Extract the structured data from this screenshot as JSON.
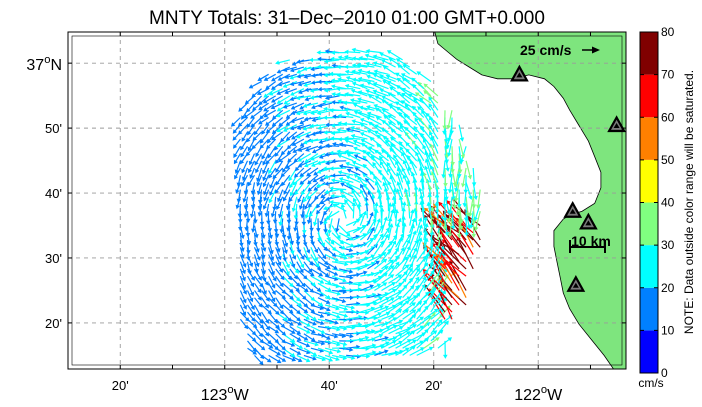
{
  "title": "MNTY Totals: 31–Dec–2010 01:00 GMT+0.000",
  "lat_labels": [
    {
      "text": "37",
      "sup": "o",
      "suffix": "N",
      "lat": 37.0
    },
    {
      "text": "50'",
      "lat": 36.8333
    },
    {
      "text": "40'",
      "lat": 36.6667
    },
    {
      "text": "30'",
      "lat": 36.5
    },
    {
      "text": "20'",
      "lat": 36.3333
    }
  ],
  "lon_labels": [
    {
      "text": "20'",
      "lon": -123.3333
    },
    {
      "text": "123",
      "sup": "o",
      "suffix": "W",
      "lon": -123.0
    },
    {
      "text": "40'",
      "lon": -122.6667
    },
    {
      "text": "20'",
      "lon": -122.3333
    },
    {
      "text": "122",
      "sup": "o",
      "suffix": "W",
      "lon": -122.0
    }
  ],
  "map_extent": {
    "lon_min": -123.5,
    "lon_max": -121.72,
    "lat_min": 36.215,
    "lat_max": 37.08
  },
  "scale_arrow_label": "25 cm/s",
  "scale_bar_label": "10 km",
  "colorbar": {
    "ticks": [
      "0",
      "10",
      "20",
      "30",
      "40",
      "50",
      "60",
      "70",
      "80"
    ],
    "unit": "cm/s",
    "note": "NOTE: Data outside color range will be saturated.",
    "colors": [
      "#0000ff",
      "#0080ff",
      "#00ffff",
      "#80ff80",
      "#ffff00",
      "#ff8000",
      "#ff0000",
      "#800000"
    ],
    "min": 0,
    "max": 80
  },
  "land_color": "#7ee57e",
  "coastline": [
    [
      -122.33,
      37.08
    ],
    [
      -122.32,
      37.05
    ],
    [
      -122.29,
      37.03
    ],
    [
      -122.26,
      37.01
    ],
    [
      -122.22,
      36.99
    ],
    [
      -122.18,
      36.97
    ],
    [
      -122.13,
      36.96
    ],
    [
      -122.08,
      36.96
    ],
    [
      -122.03,
      36.97
    ],
    [
      -121.98,
      36.96
    ],
    [
      -121.95,
      36.94
    ],
    [
      -121.92,
      36.91
    ],
    [
      -121.9,
      36.88
    ],
    [
      -121.87,
      36.84
    ],
    [
      -121.84,
      36.8
    ],
    [
      -121.82,
      36.76
    ],
    [
      -121.8,
      36.72
    ],
    [
      -121.8,
      36.68
    ],
    [
      -121.82,
      36.64
    ],
    [
      -121.86,
      36.62
    ],
    [
      -121.9,
      36.61
    ],
    [
      -121.92,
      36.6
    ],
    [
      -121.95,
      36.57
    ],
    [
      -121.95,
      36.53
    ],
    [
      -121.94,
      36.49
    ],
    [
      -121.93,
      36.45
    ],
    [
      -121.92,
      36.41
    ],
    [
      -121.9,
      36.37
    ],
    [
      -121.87,
      36.33
    ],
    [
      -121.83,
      36.29
    ],
    [
      -121.79,
      36.25
    ],
    [
      -121.76,
      36.215
    ]
  ],
  "hf_stations": [
    {
      "lon": -122.06,
      "lat": 36.97
    },
    {
      "lon": -121.75,
      "lat": 36.84
    },
    {
      "lon": -121.89,
      "lat": 36.62
    },
    {
      "lon": -121.84,
      "lat": 36.59
    },
    {
      "lon": -121.88,
      "lat": 36.43
    }
  ]
}
